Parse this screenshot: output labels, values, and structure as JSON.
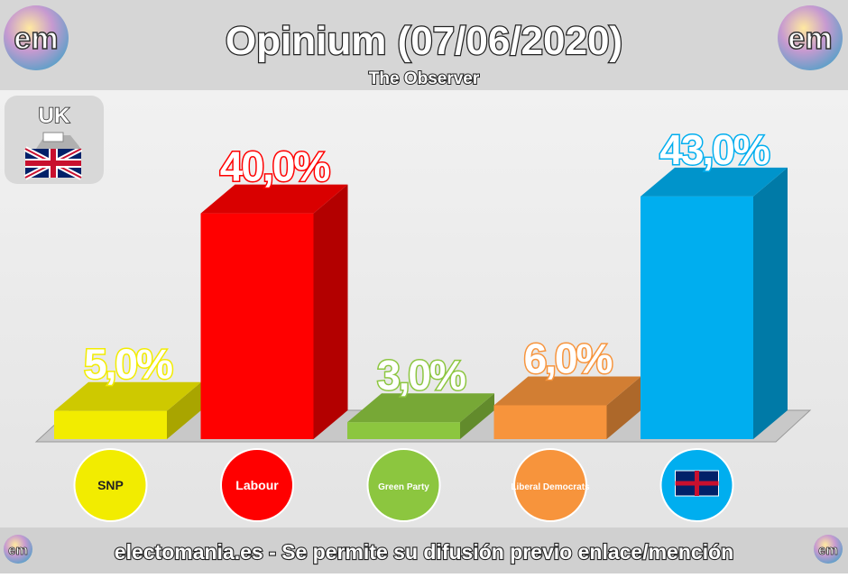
{
  "chart_data": {
    "type": "bar3d",
    "title": "Opinium (07/06/2020)",
    "subtitle": "The Observer",
    "region": "UK",
    "logo_text": "em",
    "footer": "electomania.es - Se permite su difusión previo enlace/mención",
    "categories": [
      "SNP",
      "Labour",
      "Green Party",
      "Liberal Democrats",
      null
    ],
    "values": [
      5,
      40,
      3,
      6,
      43
    ],
    "value_labels": [
      "5,0%",
      "40,0%",
      "3,0%",
      "6,0%",
      "43,0%"
    ],
    "colors": [
      "#f2ec00",
      "#ff0000",
      "#8cc63f",
      "#f7943c",
      "#00aeef"
    ]
  }
}
